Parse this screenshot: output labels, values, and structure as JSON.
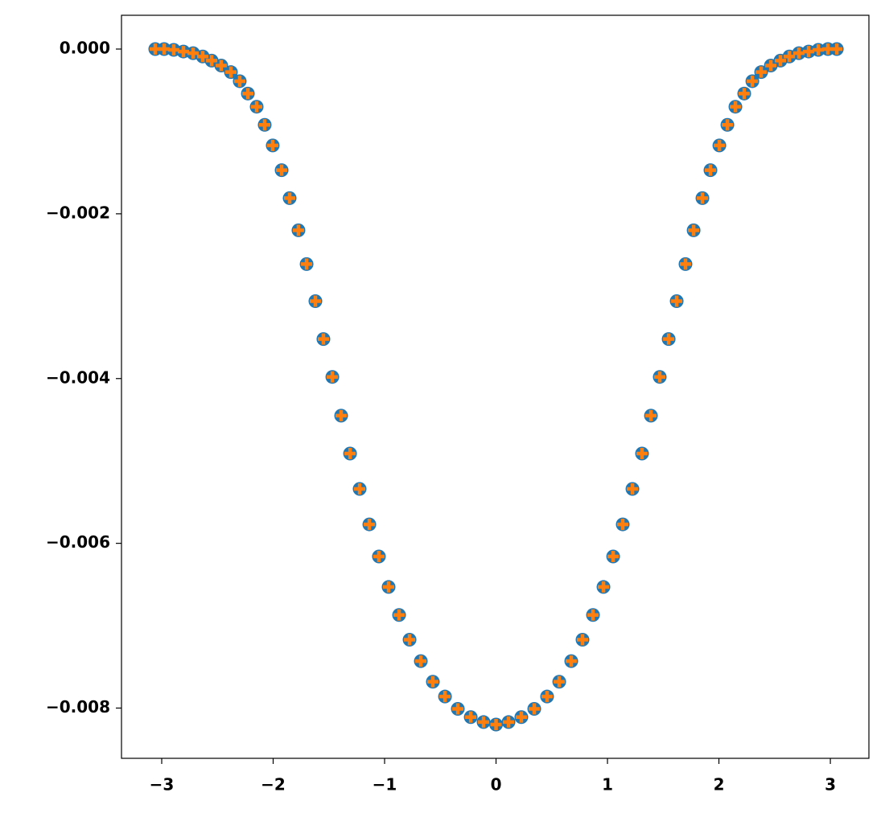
{
  "chart_data": {
    "type": "scatter",
    "x": [
      -3.058,
      -2.978,
      -2.892,
      -2.805,
      -2.718,
      -2.632,
      -2.552,
      -2.466,
      -2.379,
      -2.3,
      -2.227,
      -2.148,
      -2.076,
      -2.004,
      -1.924,
      -1.852,
      -1.773,
      -1.7,
      -1.621,
      -1.549,
      -1.469,
      -1.39,
      -1.31,
      -1.224,
      -1.137,
      -1.051,
      -0.964,
      -0.87,
      -0.776,
      -0.675,
      -0.567,
      -0.458,
      -0.343,
      -0.227,
      -0.112,
      0,
      0.112,
      0.227,
      0.343,
      0.458,
      0.567,
      0.675,
      0.776,
      0.87,
      0.964,
      1.051,
      1.137,
      1.224,
      1.31,
      1.39,
      1.469,
      1.549,
      1.621,
      1.7,
      1.773,
      1.852,
      1.924,
      2.004,
      2.076,
      2.148,
      2.227,
      2.3,
      2.379,
      2.466,
      2.552,
      2.632,
      2.718,
      2.805,
      2.892,
      2.978,
      3.058
    ],
    "series": [
      {
        "color": "#1f77b4",
        "marker": "circle",
        "values": [
          0,
          0,
          -1e-05,
          -3e-05,
          -5e-05,
          -9e-05,
          -0.00014,
          -0.0002,
          -0.00028,
          -0.00039,
          -0.00054,
          -0.0007,
          -0.00092,
          -0.00117,
          -0.00147,
          -0.00181,
          -0.0022,
          -0.00261,
          -0.00306,
          -0.00352,
          -0.00398,
          -0.00445,
          -0.00491,
          -0.00534,
          -0.00577,
          -0.00616,
          -0.00653,
          -0.00687,
          -0.00717,
          -0.00743,
          -0.00768,
          -0.00786,
          -0.00801,
          -0.00811,
          -0.00817,
          -0.0082,
          -0.00817,
          -0.00811,
          -0.00801,
          -0.00786,
          -0.00768,
          -0.00743,
          -0.00717,
          -0.00687,
          -0.00653,
          -0.00616,
          -0.00577,
          -0.00534,
          -0.00491,
          -0.00445,
          -0.00398,
          -0.00352,
          -0.00306,
          -0.00261,
          -0.0022,
          -0.00181,
          -0.00147,
          -0.00117,
          -0.00092,
          -0.0007,
          -0.00054,
          -0.00039,
          -0.00028,
          -0.0002,
          -0.00014,
          -9e-05,
          -5e-05,
          -3e-05,
          -1e-05,
          0,
          0
        ]
      },
      {
        "color": "#ff7f0e",
        "marker": "plus",
        "values": [
          0,
          0,
          -1e-05,
          -3e-05,
          -5e-05,
          -9e-05,
          -0.00014,
          -0.0002,
          -0.00028,
          -0.00039,
          -0.00054,
          -0.0007,
          -0.00092,
          -0.00117,
          -0.00147,
          -0.00181,
          -0.0022,
          -0.00261,
          -0.00306,
          -0.00352,
          -0.00398,
          -0.00445,
          -0.00491,
          -0.00534,
          -0.00577,
          -0.00616,
          -0.00653,
          -0.00687,
          -0.00717,
          -0.00743,
          -0.00768,
          -0.00786,
          -0.00801,
          -0.00811,
          -0.00817,
          -0.0082,
          -0.00817,
          -0.00811,
          -0.00801,
          -0.00786,
          -0.00768,
          -0.00743,
          -0.00717,
          -0.00687,
          -0.00653,
          -0.00616,
          -0.00577,
          -0.00534,
          -0.00491,
          -0.00445,
          -0.00398,
          -0.00352,
          -0.00306,
          -0.00261,
          -0.0022,
          -0.00181,
          -0.00147,
          -0.00117,
          -0.00092,
          -0.0007,
          -0.00054,
          -0.00039,
          -0.00028,
          -0.0002,
          -0.00014,
          -9e-05,
          -5e-05,
          -3e-05,
          -1e-05,
          0,
          0
        ]
      }
    ],
    "xlim": [
      -3.361,
      3.346
    ],
    "ylim": [
      -0.00861,
      0.00041
    ],
    "xticks": [
      {
        "value": -3,
        "label": "−3"
      },
      {
        "value": -2,
        "label": "−2"
      },
      {
        "value": -1,
        "label": "−1"
      },
      0,
      1,
      2,
      3
    ],
    "yticks": [
      {
        "value": 0,
        "label": "0.000"
      },
      {
        "value": -0.002,
        "label": "−0.002"
      },
      {
        "value": -0.004,
        "label": "−0.004"
      },
      {
        "value": -0.006,
        "label": "−0.006"
      },
      {
        "value": -0.008,
        "label": "−0.008"
      }
    ]
  }
}
